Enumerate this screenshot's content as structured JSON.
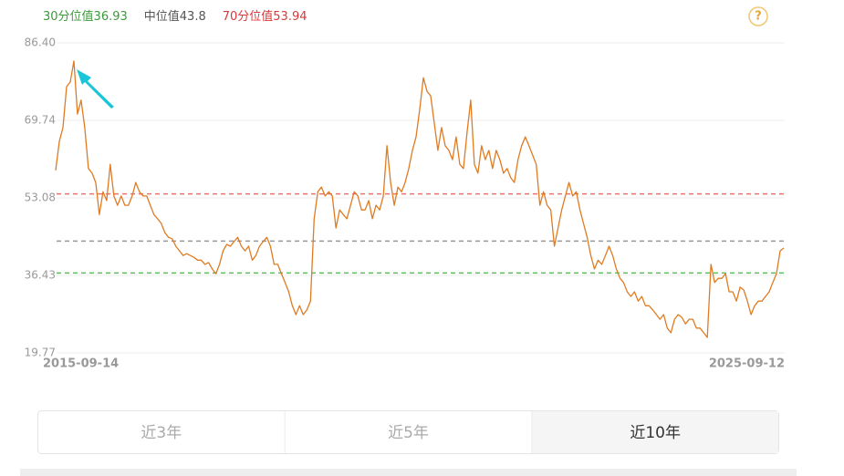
{
  "chart_data": {
    "type": "line",
    "color": "#e07b22",
    "reference_lines": [
      {
        "label": "30分位值",
        "value": 36.93,
        "color": "#3a9a3a",
        "line_color": "#5cbf5c"
      },
      {
        "label": "中位值",
        "value": 43.8,
        "color": "#555555",
        "line_color": "#999999"
      },
      {
        "label": "70分位值",
        "value": 53.94,
        "color": "#d9383a",
        "line_color": "#e8736f"
      }
    ],
    "ylim": [
      19.77,
      86.4
    ],
    "yticks": [
      19.77,
      36.43,
      53.08,
      69.74,
      {
        "value": 86.4,
        "label": "86.40"
      }
    ],
    "grid": true,
    "categories": [
      "2015-09-14",
      null,
      null,
      null,
      null,
      null,
      null,
      null,
      null,
      null,
      null,
      null,
      null,
      null,
      null,
      null,
      null,
      null,
      null,
      null,
      null,
      null,
      null,
      null,
      null,
      null,
      null,
      null,
      null,
      null,
      null,
      null,
      null,
      null,
      null,
      null,
      null,
      null,
      null,
      null,
      null,
      null,
      null,
      null,
      null,
      null,
      null,
      null,
      null,
      null,
      null,
      null,
      null,
      null,
      null,
      null,
      null,
      null,
      null,
      null,
      null,
      null,
      null,
      null,
      null,
      null,
      null,
      null,
      null,
      null,
      null,
      null,
      null,
      null,
      null,
      null,
      null,
      null,
      null,
      null,
      null,
      null,
      null,
      null,
      null,
      null,
      null,
      null,
      null,
      null,
      null,
      null,
      null,
      null,
      null,
      null,
      null,
      null,
      null,
      null,
      null,
      null,
      null,
      null,
      null,
      null,
      null,
      null,
      null,
      null,
      null,
      null,
      null,
      null,
      null,
      null,
      null,
      null,
      null,
      null,
      null,
      null,
      null,
      null,
      null,
      null,
      null,
      null,
      null,
      null,
      null,
      null,
      null,
      null,
      null,
      null,
      null,
      null,
      null,
      null,
      null,
      null,
      null,
      null,
      null,
      null,
      null,
      null,
      null,
      null,
      null,
      null,
      null,
      null,
      null,
      null,
      null,
      null,
      null,
      null,
      null,
      null,
      null,
      null,
      null,
      null,
      null,
      null,
      null,
      null,
      null,
      null,
      null,
      null,
      null,
      null,
      null,
      null,
      null,
      null,
      null,
      null,
      null,
      null,
      null,
      null,
      null,
      null,
      null,
      null,
      null,
      null,
      null,
      null,
      null,
      null,
      null,
      null,
      null,
      null,
      "2025-09-12"
    ],
    "values": [
      59.0,
      65.2,
      68.2,
      77.0,
      78.0,
      82.5,
      71.1,
      74.1,
      68.2,
      59.4,
      58.4,
      56.4,
      49.5,
      54.4,
      52.5,
      60.3,
      53.5,
      51.5,
      53.5,
      51.5,
      51.5,
      53.5,
      56.4,
      54.4,
      53.5,
      53.5,
      51.5,
      49.5,
      48.6,
      47.6,
      45.6,
      44.6,
      44.3,
      42.7,
      41.7,
      40.7,
      41.1,
      40.7,
      40.3,
      39.7,
      39.7,
      38.8,
      39.2,
      37.8,
      36.8,
      38.8,
      41.7,
      43.1,
      42.7,
      43.7,
      44.6,
      42.7,
      41.7,
      42.7,
      39.7,
      40.7,
      42.7,
      43.7,
      44.6,
      42.7,
      38.8,
      38.8,
      36.8,
      34.9,
      32.9,
      29.9,
      28.0,
      29.9,
      28.0,
      29.0,
      30.9,
      48.6,
      54.4,
      55.4,
      53.5,
      54.4,
      53.5,
      46.6,
      50.5,
      49.5,
      48.6,
      51.5,
      54.4,
      53.5,
      50.5,
      50.5,
      52.5,
      48.6,
      51.5,
      50.5,
      53.5,
      64.3,
      56.4,
      51.5,
      55.4,
      54.4,
      56.4,
      59.4,
      63.3,
      66.2,
      72.1,
      78.9,
      76.0,
      75.0,
      69.1,
      63.3,
      68.2,
      64.3,
      63.3,
      61.3,
      66.2,
      60.3,
      59.4,
      67.2,
      74.1,
      60.3,
      58.4,
      64.3,
      61.3,
      63.3,
      59.4,
      63.3,
      61.3,
      58.4,
      59.4,
      57.4,
      56.4,
      61.3,
      64.3,
      66.2,
      64.3,
      62.3,
      60.3,
      51.5,
      54.4,
      51.5,
      50.5,
      42.7,
      46.6,
      50.5,
      53.5,
      56.4,
      53.5,
      54.4,
      50.5,
      47.6,
      44.6,
      40.7,
      37.8,
      39.7,
      38.8,
      40.7,
      42.7,
      40.7,
      37.8,
      35.8,
      34.9,
      32.9,
      31.9,
      32.9,
      30.9,
      31.9,
      29.9,
      29.9,
      29.0,
      28.0,
      27.0,
      28.0,
      25.1,
      24.1,
      27.0,
      28.0,
      27.4,
      26.0,
      27.0,
      27.0,
      25.1,
      25.1,
      24.1,
      23.1,
      38.8,
      34.9,
      35.8,
      35.8,
      36.8,
      32.9,
      32.9,
      30.9,
      33.9,
      33.3,
      30.9,
      28.0,
      29.9,
      30.9,
      30.9,
      31.9,
      32.9,
      34.9,
      36.8,
      41.7,
      42.3
    ]
  },
  "help_icon": "?",
  "tabs": {
    "items": [
      "近3年",
      "近5年",
      "近10年"
    ],
    "selected": 2
  }
}
